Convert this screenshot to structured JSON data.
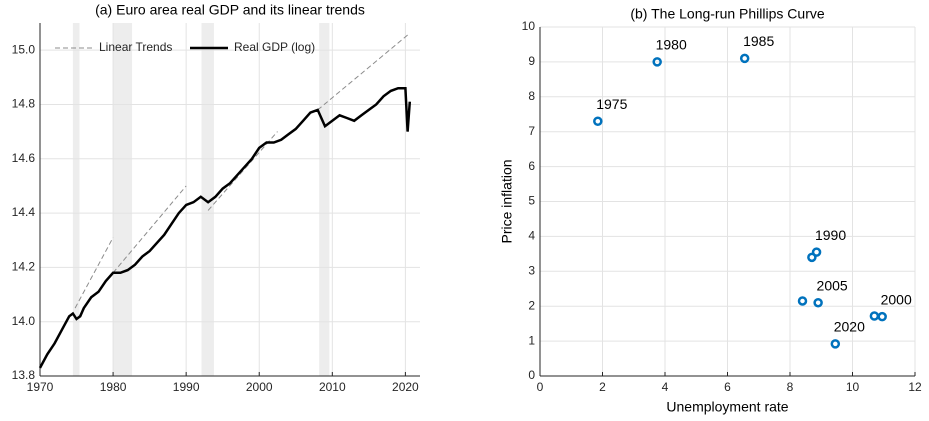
{
  "chart_data": [
    {
      "type": "line",
      "title": "(a) Euro area real GDP and its linear trends",
      "xlim": [
        1970,
        2022
      ],
      "xticks": [
        1970,
        1980,
        1990,
        2000,
        2010,
        2020
      ],
      "ylim": [
        13.8,
        15.1
      ],
      "yticks": [
        13.8,
        {
          "value": 14,
          "label": "14.0"
        },
        14.2,
        14.4,
        14.6,
        14.8,
        {
          "value": 15,
          "label": "15.0"
        }
      ],
      "grid": true,
      "legend": "top-left",
      "shaded_periods": [
        [
          1974.5,
          1975.4
        ],
        [
          1980,
          1982.6
        ],
        [
          1992.1,
          1993.8
        ],
        [
          2008.2,
          2009.6
        ]
      ],
      "series": [
        {
          "name": "Linear Trends",
          "color": "#8c8c8c",
          "dashed": true,
          "x": [
            1974.8,
            1980,
            1980,
            1980,
            1990,
            1990,
            1993,
            2002.5,
            2002.5,
            2008,
            2020.5
          ],
          "values": [
            14.05,
            14.31,
            null,
            14.18,
            14.5,
            null,
            14.41,
            14.7,
            null,
            14.78,
            15.06
          ]
        },
        {
          "name": "Real GDP (log)",
          "color": "#000000",
          "dashed": false,
          "x": [
            1970,
            1971,
            1972,
            1973,
            1974,
            1974.5,
            1975,
            1975.5,
            1976,
            1977,
            1978,
            1979,
            1980,
            1981,
            1982,
            1983,
            1984,
            1985,
            1986,
            1987,
            1988,
            1989,
            1990,
            1991,
            1992,
            1993,
            1994,
            1995,
            1996,
            1997,
            1998,
            1999,
            2000,
            2001,
            2002,
            2003,
            2004,
            2005,
            2006,
            2007,
            2008,
            2009,
            2010,
            2011,
            2012,
            2013,
            2014,
            2015,
            2016,
            2017,
            2018,
            2019,
            2020,
            2020.3,
            2020.6
          ],
          "values": [
            13.83,
            13.88,
            13.92,
            13.97,
            14.02,
            14.03,
            14.01,
            14.02,
            14.05,
            14.09,
            14.11,
            14.15,
            14.18,
            14.18,
            14.19,
            14.21,
            14.24,
            14.26,
            14.29,
            14.32,
            14.36,
            14.4,
            14.43,
            14.44,
            14.46,
            14.44,
            14.46,
            14.49,
            14.51,
            14.54,
            14.57,
            14.6,
            14.64,
            14.66,
            14.66,
            14.67,
            14.69,
            14.71,
            14.74,
            14.77,
            14.78,
            14.72,
            14.74,
            14.76,
            14.75,
            14.74,
            14.76,
            14.78,
            14.8,
            14.83,
            14.85,
            14.86,
            14.86,
            14.7,
            14.81
          ]
        }
      ]
    },
    {
      "type": "scatter",
      "title": "(b) The Long-run Phillips Curve",
      "x_label": "Unemployment rate",
      "y_label": "Price inflation",
      "xlim": [
        0,
        12
      ],
      "xticks": [
        0,
        2,
        4,
        6,
        8,
        10,
        12
      ],
      "ylim": [
        0,
        10
      ],
      "yticks": [
        0,
        1,
        2,
        3,
        4,
        5,
        6,
        7,
        8,
        9,
        10
      ],
      "grid": true,
      "color": "#0072bd",
      "x": [
        1.85,
        3.75,
        6.55,
        8.7,
        8.85,
        8.4,
        8.9,
        10.7,
        10.95,
        9.45
      ],
      "values": [
        7.3,
        9.0,
        9.1,
        3.4,
        3.55,
        2.15,
        2.1,
        1.72,
        1.7,
        0.92
      ],
      "labels": [
        "1975",
        "1980",
        "1985",
        null,
        "1990",
        null,
        "2005",
        null,
        "2000",
        "2020"
      ]
    }
  ]
}
